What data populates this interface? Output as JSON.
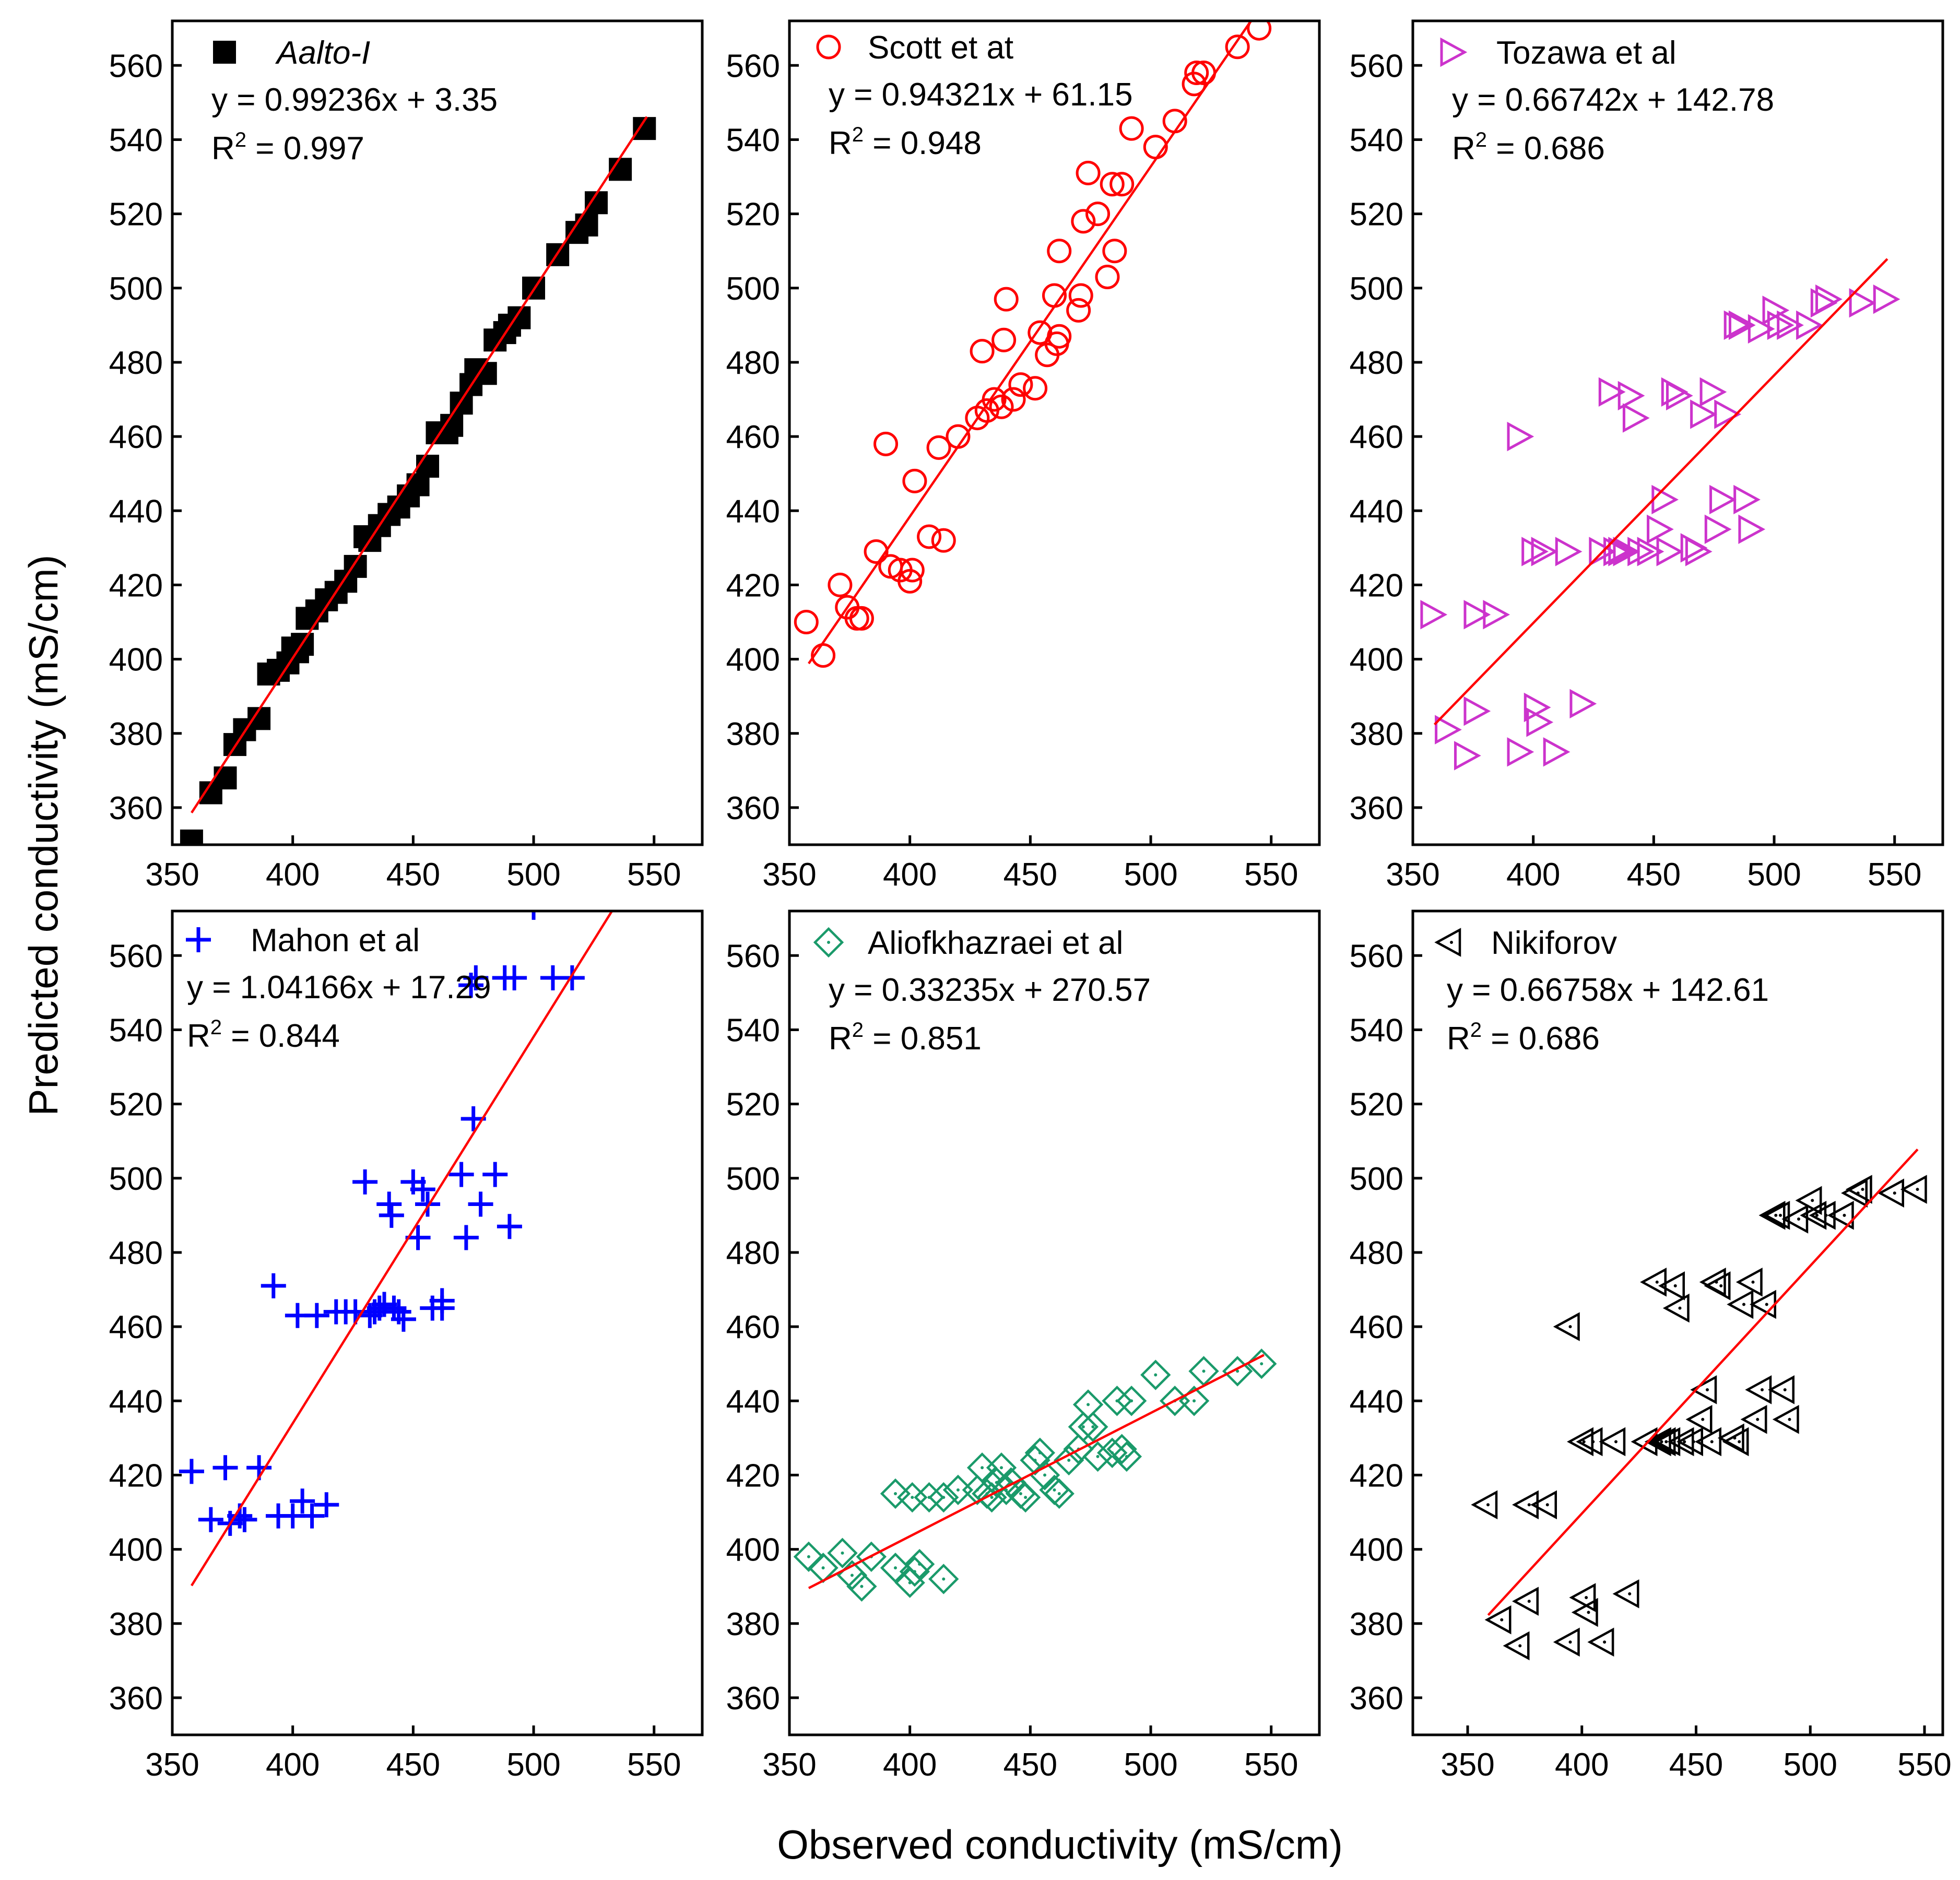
{
  "figure": {
    "xlabel": "Observed conductivity (mS/cm)",
    "ylabel": "Predicted conductivity (mS/cm)"
  },
  "chart_data": [
    {
      "type": "scatter",
      "name": "Aalto-I",
      "label_italic": true,
      "marker": "square",
      "color": "#000000",
      "equation": "y = 0.99236x + 3.35",
      "r2_prefix": "R",
      "r2_value": " = 0.997",
      "fit": {
        "slope": 0.99236,
        "intercept": 3.35,
        "x_range": [
          358,
          547
        ],
        "color": "#ff0000"
      },
      "xlim": [
        350,
        570
      ],
      "ylim": [
        350,
        572
      ],
      "xticks": [
        350,
        400,
        450,
        500,
        550
      ],
      "yticks": [
        360,
        380,
        400,
        420,
        440,
        460,
        480,
        500,
        520,
        540,
        560
      ],
      "x": [
        358,
        366,
        372,
        376,
        380,
        386,
        390,
        394,
        398,
        400,
        402,
        404,
        406,
        410,
        414,
        418,
        422,
        426,
        430,
        432,
        436,
        440,
        444,
        448,
        452,
        456,
        460,
        464,
        466,
        470,
        474,
        476,
        480,
        484,
        488,
        490,
        494,
        500,
        510,
        518,
        522,
        526,
        536,
        546
      ],
      "y": [
        351,
        364,
        368,
        377,
        381,
        384,
        396,
        397,
        399,
        403,
        402,
        404,
        411,
        413,
        416,
        418,
        421,
        425,
        433,
        432,
        436,
        439,
        441,
        444,
        447,
        452,
        461,
        461,
        463,
        469,
        474,
        478,
        477,
        486,
        488,
        490,
        492,
        500,
        509,
        515,
        517,
        523,
        532,
        543
      ]
    },
    {
      "type": "scatter",
      "name": "Scott et at",
      "label_italic": false,
      "marker": "circle",
      "color": "#ff0000",
      "equation": "y = 0.94321x + 61.15",
      "r2_prefix": "R",
      "r2_value": " = 0.948",
      "fit": {
        "slope": 0.94321,
        "intercept": 61.15,
        "x_range": [
          358,
          547
        ],
        "color": "#ff0000"
      },
      "xlim": [
        350,
        570
      ],
      "ylim": [
        350,
        572
      ],
      "xticks": [
        350,
        400,
        450,
        500,
        550
      ],
      "yticks": [
        360,
        380,
        400,
        420,
        440,
        460,
        480,
        500,
        520,
        540,
        560
      ],
      "x": [
        357,
        364,
        371,
        374,
        378,
        380,
        386,
        390,
        392,
        396,
        400,
        401,
        402,
        408,
        414,
        412,
        420,
        428,
        430,
        432,
        435,
        438,
        440,
        439,
        443,
        446,
        452,
        454,
        457,
        460,
        461,
        462,
        462,
        470,
        471,
        472,
        474,
        478,
        482,
        484,
        485,
        488,
        492,
        502,
        510,
        518,
        519,
        522,
        536,
        545
      ],
      "y": [
        410,
        401,
        420,
        414,
        411,
        411,
        429,
        458,
        425,
        424,
        421,
        424,
        448,
        433,
        432,
        457,
        460,
        465,
        483,
        467,
        470,
        468,
        497,
        486,
        470,
        474,
        473,
        488,
        482,
        498,
        485,
        487,
        510,
        494,
        498,
        518,
        531,
        520,
        503,
        528,
        510,
        528,
        543,
        538,
        545,
        555,
        558,
        558,
        565,
        570
      ]
    },
    {
      "type": "scatter",
      "name": "Tozawa et al",
      "label_italic": false,
      "marker": "triangle-right",
      "color": "#cc33cc",
      "equation": "y = 0.66742x + 142.78",
      "r2_prefix": "R",
      "r2_value": " = 0.686",
      "fit": {
        "slope": 0.66742,
        "intercept": 142.78,
        "x_range": [
          359,
          547
        ],
        "color": "#ff0000"
      },
      "xlim": [
        350,
        570
      ],
      "ylim": [
        350,
        572
      ],
      "xticks": [
        350,
        400,
        450,
        500,
        550
      ],
      "yticks": [
        360,
        380,
        400,
        420,
        440,
        460,
        480,
        500,
        520,
        540,
        560
      ],
      "x": [
        358,
        364,
        372,
        376,
        376,
        384,
        394,
        394,
        400,
        401,
        402,
        404,
        409,
        414,
        420,
        428,
        432,
        434,
        436,
        438,
        440,
        442,
        444,
        448,
        452,
        454,
        456,
        458,
        460,
        466,
        468,
        470,
        474,
        476,
        478,
        480,
        484,
        486,
        488,
        490,
        494,
        500,
        502,
        506,
        514,
        520,
        522,
        536,
        546
      ],
      "y": [
        412,
        381,
        374,
        412,
        386,
        412,
        375,
        460,
        429,
        387,
        383,
        429,
        375,
        429,
        388,
        429,
        472,
        429,
        429,
        429,
        471,
        465,
        429,
        429,
        435,
        443,
        429,
        472,
        471,
        430,
        429,
        466,
        472,
        435,
        443,
        466,
        490,
        490,
        443,
        435,
        489,
        494,
        490,
        490,
        490,
        496,
        497,
        496,
        497
      ]
    },
    {
      "type": "scatter",
      "name": "Mahon et al",
      "label_italic": false,
      "marker": "plus",
      "color": "#0000ff",
      "equation": "y = 1.04166x + 17.29",
      "r2_prefix": "R",
      "r2_value": " = 0.844",
      "fit": {
        "slope": 1.04166,
        "intercept": 17.29,
        "x_range": [
          358,
          538
        ],
        "color": "#ff0000"
      },
      "xlim": [
        350,
        570
      ],
      "ylim": [
        350,
        572
      ],
      "xticks": [
        350,
        400,
        450,
        500,
        550
      ],
      "yticks": [
        360,
        380,
        400,
        420,
        440,
        460,
        480,
        500,
        520,
        540,
        560
      ],
      "x": [
        358,
        366,
        372,
        374,
        378,
        380,
        386,
        392,
        394,
        400,
        402,
        404,
        408,
        410,
        414,
        418,
        422,
        426,
        430,
        432,
        434,
        436,
        438,
        440,
        441,
        442,
        444,
        446,
        450,
        452,
        454,
        456,
        458,
        462,
        462,
        470,
        472,
        474,
        475,
        476,
        478,
        484,
        488,
        490,
        492,
        500,
        508,
        516
      ],
      "y": [
        421,
        408,
        422,
        407,
        409,
        408,
        422,
        471,
        409,
        409,
        463,
        413,
        409,
        463,
        412,
        464,
        464,
        464,
        499,
        463,
        464,
        465,
        466,
        493,
        490,
        465,
        464,
        462,
        499,
        484,
        497,
        493,
        465,
        467,
        465,
        501,
        484,
        552,
        516,
        554,
        493,
        501,
        554,
        487,
        554,
        573,
        554,
        554
      ]
    },
    {
      "type": "scatter",
      "name": "Aliofkhazraei et al",
      "label_italic": false,
      "marker": "diamond-dot",
      "color": "#1a9a6a",
      "equation": "y = 0.33235x + 270.57",
      "r2_prefix": "R",
      "r2_value": " = 0.851",
      "fit": {
        "slope": 0.33235,
        "intercept": 270.57,
        "x_range": [
          358,
          547
        ],
        "color": "#ff0000"
      },
      "xlim": [
        350,
        570
      ],
      "ylim": [
        350,
        572
      ],
      "xticks": [
        350,
        400,
        450,
        500,
        550
      ],
      "yticks": [
        360,
        380,
        400,
        420,
        440,
        460,
        480,
        500,
        520,
        540,
        560
      ],
      "x": [
        358,
        364,
        372,
        376,
        380,
        384,
        394,
        394,
        400,
        401,
        402,
        404,
        408,
        414,
        414,
        420,
        428,
        430,
        432,
        434,
        436,
        438,
        440,
        442,
        446,
        448,
        452,
        454,
        456,
        460,
        462,
        466,
        470,
        472,
        474,
        476,
        478,
        484,
        486,
        488,
        490,
        492,
        502,
        510,
        518,
        522,
        536,
        546
      ],
      "y": [
        398,
        395,
        399,
        393,
        390,
        398,
        415,
        395,
        391,
        414,
        394,
        396,
        414,
        392,
        414,
        416,
        416,
        422,
        415,
        414,
        418,
        422,
        416,
        418,
        415,
        414,
        424,
        426,
        420,
        416,
        415,
        424,
        427,
        433,
        439,
        433,
        425,
        426,
        440,
        427,
        425,
        440,
        447,
        440,
        440,
        448,
        448,
        450
      ]
    },
    {
      "type": "scatter",
      "name": "Nikiforov",
      "label_italic": false,
      "marker": "triangle-left-dot",
      "color": "#000000",
      "equation": "y = 0.66758x + 142.61",
      "r2_prefix": "R",
      "r2_value": " = 0.686",
      "fit": {
        "slope": 0.66758,
        "intercept": 142.61,
        "x_range": [
          359,
          547
        ],
        "color": "#ff0000"
      },
      "xlim": [
        326,
        558
      ],
      "ylim": [
        350,
        572
      ],
      "xticks": [
        350,
        400,
        450,
        500,
        550
      ],
      "yticks": [
        360,
        380,
        400,
        420,
        440,
        460,
        480,
        500,
        520,
        540,
        560
      ],
      "x": [
        358,
        364,
        372,
        376,
        376,
        384,
        394,
        394,
        400,
        401,
        402,
        404,
        409,
        414,
        420,
        428,
        432,
        434,
        436,
        438,
        440,
        442,
        444,
        448,
        452,
        454,
        456,
        458,
        460,
        466,
        468,
        470,
        474,
        476,
        478,
        480,
        484,
        486,
        488,
        490,
        494,
        500,
        502,
        506,
        514,
        520,
        522,
        536,
        546
      ],
      "y": [
        412,
        381,
        374,
        412,
        386,
        412,
        375,
        460,
        429,
        387,
        383,
        429,
        375,
        429,
        388,
        429,
        472,
        429,
        429,
        429,
        471,
        465,
        429,
        429,
        435,
        443,
        429,
        472,
        471,
        430,
        429,
        466,
        472,
        435,
        443,
        466,
        490,
        490,
        443,
        435,
        489,
        494,
        490,
        490,
        490,
        496,
        497,
        496,
        497
      ]
    }
  ]
}
